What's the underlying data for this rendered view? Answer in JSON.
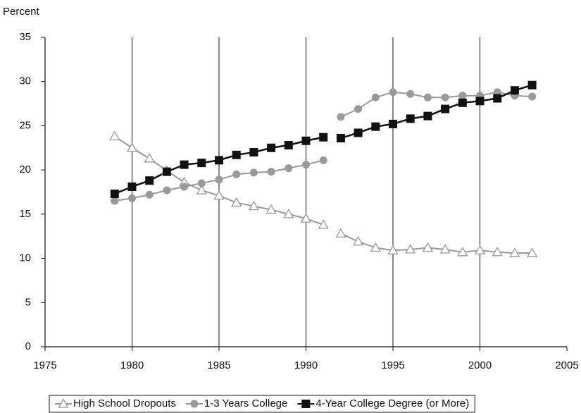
{
  "chart_data": {
    "type": "line",
    "y_label": "Percent",
    "x": [
      1979,
      1980,
      1981,
      1982,
      1983,
      1984,
      1985,
      1986,
      1987,
      1988,
      1989,
      1990,
      1991,
      null,
      1992,
      1993,
      1994,
      1995,
      1996,
      1997,
      1998,
      1999,
      2000,
      2001,
      2002,
      2003
    ],
    "xlim": [
      1975,
      2005
    ],
    "xticks": [
      1975,
      1980,
      1985,
      1990,
      1995,
      2000,
      2005
    ],
    "ylim": [
      0,
      35
    ],
    "yticks": [
      0,
      5,
      10,
      15,
      20,
      25,
      30,
      35
    ],
    "grid": "x",
    "legend": "bottom",
    "series": [
      {
        "name": "High School Dropouts",
        "color": "#999999",
        "marker": "open-triangle",
        "values": [
          23.8,
          22.5,
          21.3,
          19.9,
          18.6,
          17.7,
          17.1,
          16.3,
          15.9,
          15.5,
          15.0,
          14.5,
          13.8,
          null,
          12.8,
          11.9,
          11.2,
          10.9,
          11.0,
          11.2,
          11.0,
          10.7,
          10.9,
          10.7,
          10.6,
          10.6
        ]
      },
      {
        "name": "1-3 Years College",
        "color": "#999999",
        "marker": "circle",
        "values": [
          16.5,
          16.8,
          17.2,
          17.7,
          18.1,
          18.5,
          18.9,
          19.5,
          19.7,
          19.8,
          20.2,
          20.6,
          21.1,
          null,
          26.0,
          26.9,
          28.2,
          28.8,
          28.6,
          28.2,
          28.2,
          28.4,
          28.4,
          28.8,
          28.4,
          28.3
        ]
      },
      {
        "name": "4-Year College Degree (or More)",
        "color": "#111111",
        "marker": "square",
        "values": [
          17.3,
          18.1,
          18.8,
          19.8,
          20.6,
          20.8,
          21.1,
          21.7,
          22.0,
          22.5,
          22.8,
          23.3,
          23.7,
          null,
          23.6,
          24.2,
          24.9,
          25.2,
          25.8,
          26.1,
          26.9,
          27.6,
          27.8,
          28.1,
          29.0,
          29.6
        ]
      }
    ]
  }
}
